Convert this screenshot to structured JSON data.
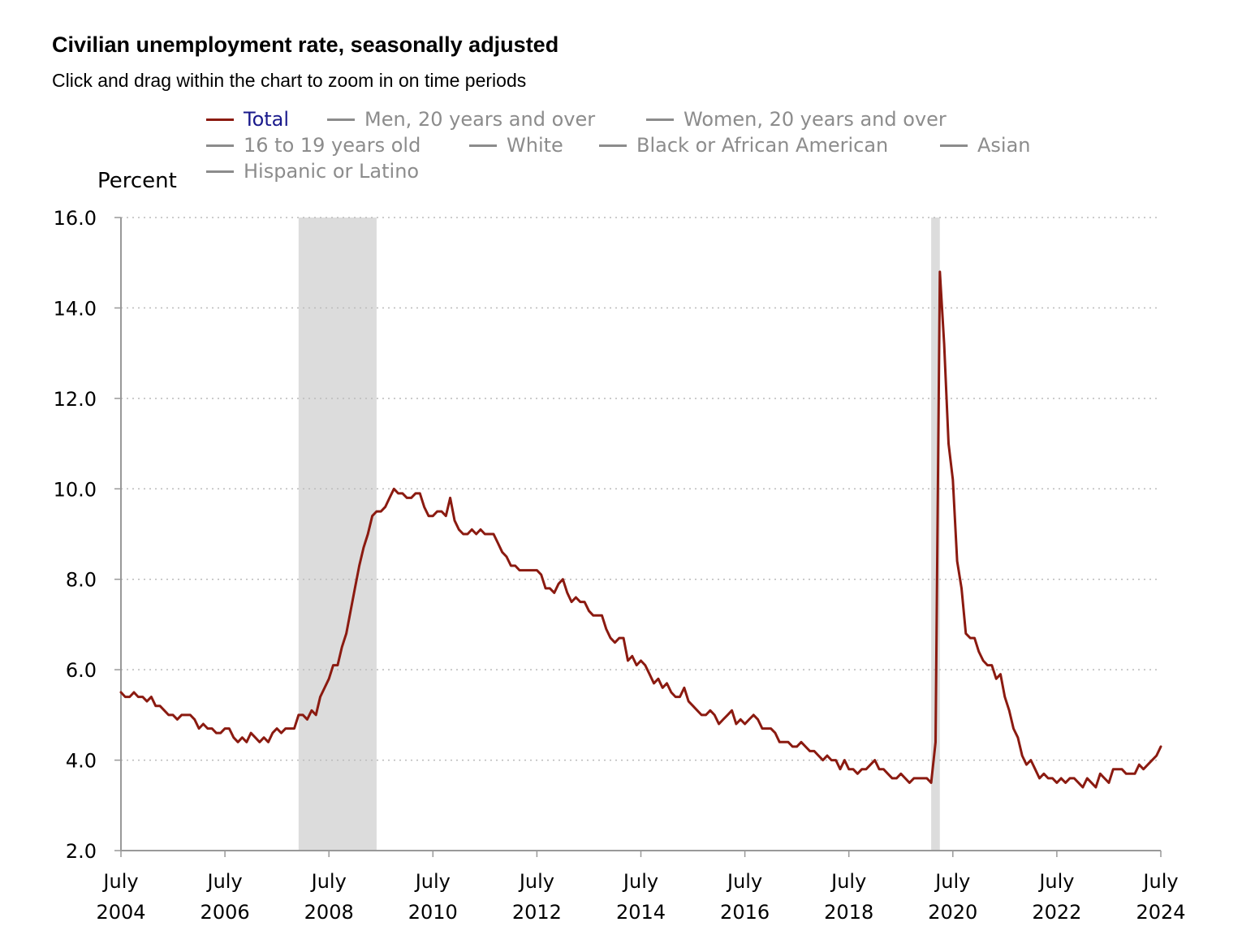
{
  "header": {
    "title": "Civilian unemployment rate, seasonally adjusted",
    "subtitle": "Click and drag within the chart to zoom in on time periods"
  },
  "legend": {
    "items": [
      {
        "label": "Total",
        "active": true
      },
      {
        "label": "Men, 20 years and over",
        "active": false
      },
      {
        "label": "Women, 20 years and over",
        "active": false
      },
      {
        "label": "16 to 19 years old",
        "active": false
      },
      {
        "label": "White",
        "active": false
      },
      {
        "label": "Black or African American",
        "active": false
      },
      {
        "label": "Asian",
        "active": false
      },
      {
        "label": "Hispanic or Latino",
        "active": false
      }
    ]
  },
  "colors": {
    "series": "#8b1a10",
    "recession": "#dcdcdc",
    "grid": "#bbbbbb",
    "axis": "#999999",
    "active_legend_text": "#1a1a8c",
    "inactive_legend": "#8c8c8c"
  },
  "chart_data": {
    "type": "line",
    "title": "Civilian unemployment rate, seasonally adjusted",
    "subtitle": "Click and drag within the chart to zoom in on time periods",
    "ylabel": "Percent",
    "xlabel": "",
    "ylim": [
      2.0,
      16.0
    ],
    "xlim": [
      "2004-07",
      "2024-07"
    ],
    "yticks": [
      "16.0",
      "14.0",
      "12.0",
      "10.0",
      "8.0",
      "6.0",
      "4.0",
      "2.0"
    ],
    "xticks": [
      {
        "month": "July",
        "year": "2004"
      },
      {
        "month": "July",
        "year": "2006"
      },
      {
        "month": "July",
        "year": "2008"
      },
      {
        "month": "July",
        "year": "2010"
      },
      {
        "month": "July",
        "year": "2012"
      },
      {
        "month": "July",
        "year": "2014"
      },
      {
        "month": "July",
        "year": "2016"
      },
      {
        "month": "July",
        "year": "2018"
      },
      {
        "month": "July",
        "year": "2020"
      },
      {
        "month": "July",
        "year": "2022"
      },
      {
        "month": "July",
        "year": "2024"
      }
    ],
    "grid": "horizontal dotted",
    "legend_position": "top",
    "recessions": [
      {
        "start": "2007-12",
        "end": "2009-06"
      },
      {
        "start": "2020-02",
        "end": "2020-04"
      }
    ],
    "series": [
      {
        "name": "Total",
        "start": "2004-07",
        "frequency": "monthly",
        "values": [
          5.5,
          5.4,
          5.4,
          5.5,
          5.4,
          5.4,
          5.3,
          5.4,
          5.2,
          5.2,
          5.1,
          5.0,
          5.0,
          4.9,
          5.0,
          5.0,
          5.0,
          4.9,
          4.7,
          4.8,
          4.7,
          4.7,
          4.6,
          4.6,
          4.7,
          4.7,
          4.5,
          4.4,
          4.5,
          4.4,
          4.6,
          4.5,
          4.4,
          4.5,
          4.4,
          4.6,
          4.7,
          4.6,
          4.7,
          4.7,
          4.7,
          5.0,
          5.0,
          4.9,
          5.1,
          5.0,
          5.4,
          5.6,
          5.8,
          6.1,
          6.1,
          6.5,
          6.8,
          7.3,
          7.8,
          8.3,
          8.7,
          9.0,
          9.4,
          9.5,
          9.5,
          9.6,
          9.8,
          10.0,
          9.9,
          9.9,
          9.8,
          9.8,
          9.9,
          9.9,
          9.6,
          9.4,
          9.4,
          9.5,
          9.5,
          9.4,
          9.8,
          9.3,
          9.1,
          9.0,
          9.0,
          9.1,
          9.0,
          9.1,
          9.0,
          9.0,
          9.0,
          8.8,
          8.6,
          8.5,
          8.3,
          8.3,
          8.2,
          8.2,
          8.2,
          8.2,
          8.2,
          8.1,
          7.8,
          7.8,
          7.7,
          7.9,
          8.0,
          7.7,
          7.5,
          7.6,
          7.5,
          7.5,
          7.3,
          7.2,
          7.2,
          7.2,
          6.9,
          6.7,
          6.6,
          6.7,
          6.7,
          6.2,
          6.3,
          6.1,
          6.2,
          6.1,
          5.9,
          5.7,
          5.8,
          5.6,
          5.7,
          5.5,
          5.4,
          5.4,
          5.6,
          5.3,
          5.2,
          5.1,
          5.0,
          5.0,
          5.1,
          5.0,
          4.8,
          4.9,
          5.0,
          5.1,
          4.8,
          4.9,
          4.8,
          4.9,
          5.0,
          4.9,
          4.7,
          4.7,
          4.7,
          4.6,
          4.4,
          4.4,
          4.4,
          4.3,
          4.3,
          4.4,
          4.3,
          4.2,
          4.2,
          4.1,
          4.0,
          4.1,
          4.0,
          4.0,
          3.8,
          4.0,
          3.8,
          3.8,
          3.7,
          3.8,
          3.8,
          3.9,
          4.0,
          3.8,
          3.8,
          3.7,
          3.6,
          3.6,
          3.7,
          3.6,
          3.5,
          3.6,
          3.6,
          3.6,
          3.6,
          3.5,
          4.4,
          14.8,
          13.2,
          11.0,
          10.2,
          8.4,
          7.8,
          6.8,
          6.7,
          6.7,
          6.4,
          6.2,
          6.1,
          6.1,
          5.8,
          5.9,
          5.4,
          5.1,
          4.7,
          4.5,
          4.1,
          3.9,
          4.0,
          3.8,
          3.6,
          3.7,
          3.6,
          3.6,
          3.5,
          3.6,
          3.5,
          3.6,
          3.6,
          3.5,
          3.4,
          3.6,
          3.5,
          3.4,
          3.7,
          3.6,
          3.5,
          3.8,
          3.8,
          3.8,
          3.7,
          3.7,
          3.7,
          3.9,
          3.8,
          3.9,
          4.0,
          4.1,
          4.3
        ]
      }
    ]
  }
}
